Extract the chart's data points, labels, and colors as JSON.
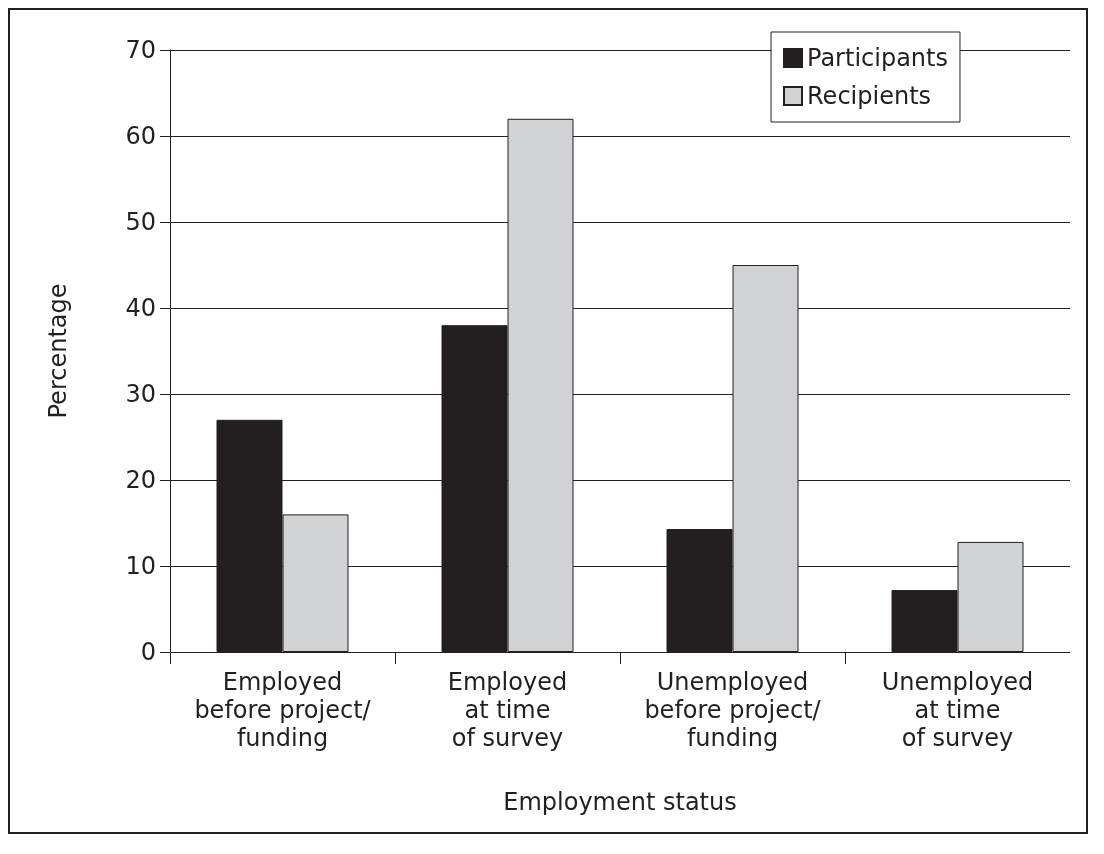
{
  "chart_data": {
    "type": "bar",
    "xlabel": "Employment status",
    "ylabel": "Percentage",
    "categories": [
      "Employed\nbefore project/\nfunding",
      "Employed\nat time\nof survey",
      "Unemployed\nbefore project/\nfunding",
      "Unemployed\nat time\nof survey"
    ],
    "series": [
      {
        "name": "Participants",
        "color": "#231f20",
        "values": [
          27,
          38,
          14.3,
          7.2
        ]
      },
      {
        "name": "Recipients",
        "color": "#d1d2d4",
        "values": [
          16,
          62,
          45,
          12.8
        ]
      }
    ],
    "ylim": [
      0,
      70
    ],
    "yticks": [
      0,
      10,
      20,
      30,
      40,
      50,
      60,
      70
    ],
    "grid": "y",
    "legend": "top right"
  }
}
